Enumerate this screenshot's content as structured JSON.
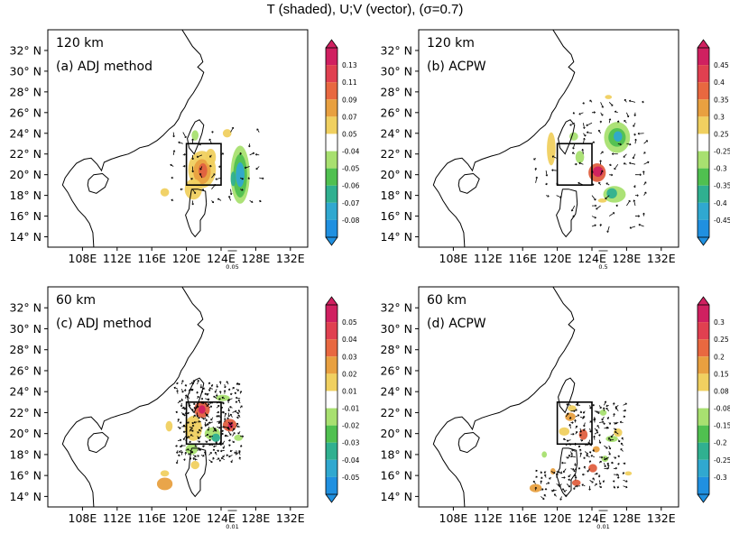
{
  "title": "T (shaded), U;V (vector), (σ=0.7)",
  "colors": {
    "land": "#ffffff",
    "coast": "#000000",
    "warm": [
      "#c8c8c8",
      "#f0d060",
      "#e8a040",
      "#e06040",
      "#d02060"
    ],
    "cool": [
      "#a8e070",
      "#50c050",
      "#30b090",
      "#30a8d0"
    ]
  },
  "panels": [
    {
      "resolution": "120 km",
      "label": "(a)  ADJ method",
      "vector_ref": "0.05",
      "colorbar_ticks": [
        "0.13",
        "0.11",
        "0.09",
        "0.07",
        "0.05",
        "-0.04",
        "-0.05",
        "-0.06",
        "-0.07",
        "-0.08"
      ]
    },
    {
      "resolution": "120 km",
      "label": "(b)  ACPW",
      "vector_ref": "0.5",
      "colorbar_ticks": [
        "0.45",
        "0.4",
        "0.35",
        "0.3",
        "0.25",
        "-0.25",
        "-0.3",
        "-0.35",
        "-0.4",
        "-0.45"
      ]
    },
    {
      "resolution": "60 km",
      "label": "(c)  ADJ method",
      "vector_ref": "0.01",
      "colorbar_ticks": [
        "0.05",
        "0.04",
        "0.03",
        "0.02",
        "0.01",
        "-0.01",
        "-0.02",
        "-0.03",
        "-0.04",
        "-0.05"
      ]
    },
    {
      "resolution": "60 km",
      "label": "(d)  ACPW",
      "vector_ref": "0.01",
      "colorbar_ticks": [
        "0.3",
        "0.25",
        "0.2",
        "0.15",
        "0.08",
        "-0.08",
        "-0.15",
        "-0.2",
        "-0.25",
        "-0.3"
      ]
    }
  ],
  "chart_data": {
    "type": "heatmap",
    "description_axes": "map",
    "xlim": [
      104,
      134
    ],
    "ylim": [
      13,
      34
    ],
    "x_ticks": [
      "108E",
      "112E",
      "116E",
      "120E",
      "124E",
      "128E",
      "132E"
    ],
    "y_ticks": [
      "14° N",
      "16° N",
      "18° N",
      "20° N",
      "22° N",
      "24° N",
      "26° N",
      "28° N",
      "30° N",
      "32° N"
    ],
    "box_lon": [
      120,
      124
    ],
    "box_lat": [
      19,
      23
    ]
  }
}
